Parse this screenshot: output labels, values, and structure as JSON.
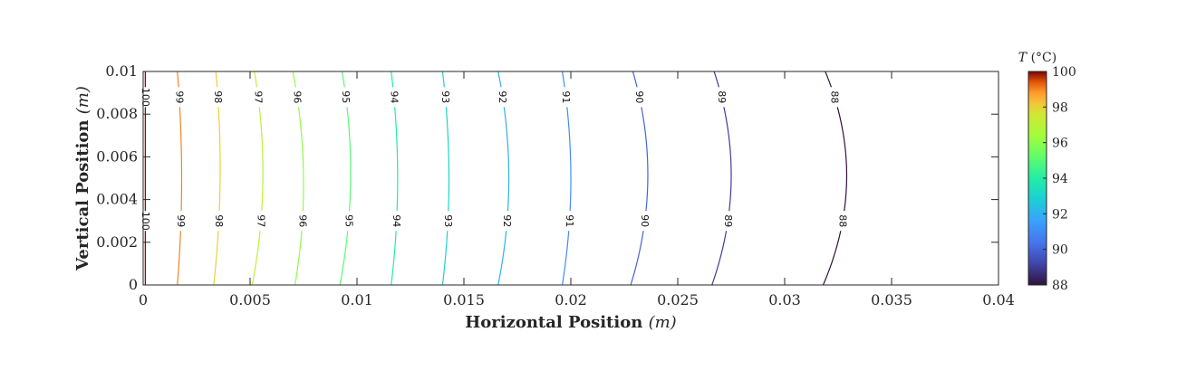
{
  "chart_data": {
    "type": "contour",
    "xlabel": "Horizontal Position",
    "xlabel_unit": "(m)",
    "ylabel": "Vertical Position",
    "ylabel_unit": "(m)",
    "xlim": [
      0,
      0.04
    ],
    "ylim": [
      0,
      0.01
    ],
    "x_ticks": [
      0,
      0.005,
      0.01,
      0.015,
      0.02,
      0.025,
      0.03,
      0.035,
      0.04
    ],
    "x_tick_labels": [
      "0",
      "0.005",
      "0.01",
      "0.015",
      "0.02",
      "0.025",
      "0.03",
      "0.035",
      "0.04"
    ],
    "y_ticks": [
      0,
      0.002,
      0.004,
      0.006,
      0.008,
      0.01
    ],
    "y_tick_labels": [
      "0",
      "0.002",
      "0.004",
      "0.006",
      "0.008",
      "0.01"
    ],
    "contours": [
      {
        "level": 100,
        "x_bottom": 0.0001,
        "x_mid": 0.0001,
        "x_top": 0.0001,
        "label_upper_y": 0.0088,
        "label_lower_y": 0.003
      },
      {
        "level": 99,
        "x_bottom": 0.0016,
        "x_mid": 0.0018,
        "x_top": 0.0016,
        "label_upper_y": 0.0088,
        "label_lower_y": 0.003
      },
      {
        "level": 98,
        "x_bottom": 0.0033,
        "x_mid": 0.0036,
        "x_top": 0.0034,
        "label_upper_y": 0.0088,
        "label_lower_y": 0.003
      },
      {
        "level": 97,
        "x_bottom": 0.0051,
        "x_mid": 0.0056,
        "x_top": 0.0052,
        "label_upper_y": 0.0088,
        "label_lower_y": 0.003
      },
      {
        "level": 96,
        "x_bottom": 0.0071,
        "x_mid": 0.0075,
        "x_top": 0.007,
        "label_upper_y": 0.0088,
        "label_lower_y": 0.003
      },
      {
        "level": 95,
        "x_bottom": 0.0092,
        "x_mid": 0.0097,
        "x_top": 0.0093,
        "label_upper_y": 0.0088,
        "label_lower_y": 0.003
      },
      {
        "level": 94,
        "x_bottom": 0.0116,
        "x_mid": 0.0119,
        "x_top": 0.0116,
        "label_upper_y": 0.0088,
        "label_lower_y": 0.003
      },
      {
        "level": 93,
        "x_bottom": 0.014,
        "x_mid": 0.0143,
        "x_top": 0.014,
        "label_upper_y": 0.0088,
        "label_lower_y": 0.003
      },
      {
        "level": 92,
        "x_bottom": 0.0166,
        "x_mid": 0.0171,
        "x_top": 0.0166,
        "label_upper_y": 0.0088,
        "label_lower_y": 0.003
      },
      {
        "level": 91,
        "x_bottom": 0.0196,
        "x_mid": 0.02,
        "x_top": 0.0196,
        "label_upper_y": 0.0088,
        "label_lower_y": 0.003
      },
      {
        "level": 90,
        "x_bottom": 0.0228,
        "x_mid": 0.0236,
        "x_top": 0.0229,
        "label_upper_y": 0.0088,
        "label_lower_y": 0.003
      },
      {
        "level": 89,
        "x_bottom": 0.0266,
        "x_mid": 0.0275,
        "x_top": 0.0267,
        "label_upper_y": 0.0088,
        "label_lower_y": 0.003
      },
      {
        "level": 88,
        "x_bottom": 0.0318,
        "x_mid": 0.0329,
        "x_top": 0.0319,
        "label_upper_y": 0.0088,
        "label_lower_y": 0.003
      }
    ],
    "colorbar": {
      "title": "T",
      "title_unit": "(°C)",
      "min": 88,
      "max": 100,
      "ticks": [
        88,
        90,
        92,
        94,
        96,
        98,
        100
      ],
      "tick_labels": [
        "88",
        "90",
        "92",
        "94",
        "96",
        "98",
        "100"
      ],
      "colormap": "turbo"
    },
    "grid": false
  }
}
